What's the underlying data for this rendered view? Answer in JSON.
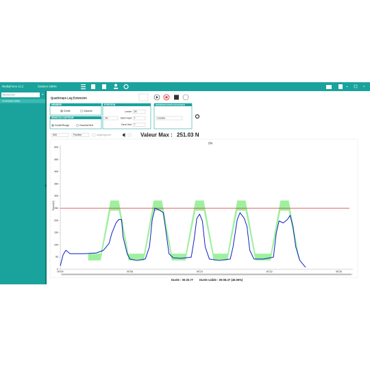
{
  "app": {
    "title": "MediqForce v2.2",
    "session": "Session Admin"
  },
  "sidebar": {
    "search_placeholder": "Rechercher",
    "items": [
      "Connexion (Idle)"
    ]
  },
  "exercise_title": "Quadriceps Leg Extension",
  "panels": {
    "membre": {
      "title": "MEMBRE",
      "options": [
        "Droite",
        "Gauche"
      ]
    },
    "sens": {
      "title": "SENS DU CAPTEUR",
      "options": [
        "Droite/Rouge",
        "Gauche/Vert"
      ]
    },
    "position": {
      "title": "POSITION",
      "levier_label": "Levier",
      "levier": "25",
      "angle": "90",
      "dent_haut_label": "Dent Haut",
      "dent_haut": "7",
      "dent_vert_label": "Dent Vert",
      "dent_vert": "7"
    },
    "representation": {
      "title": "REPRÉSENTATION GRAPHIQUE",
      "value": "Courbe"
    }
  },
  "toolbar": {
    "filter": "500",
    "mode": "Fenêtre",
    "check_label": "Angle/Ignorer",
    "max_label": "Valeur Max :",
    "max_value": "251.03 N"
  },
  "chart_data": {
    "type": "line",
    "title": "ON",
    "y_label": "Force(N)",
    "xlim": [
      0,
      21
    ],
    "xticks": [
      {
        "value": 0,
        "label": "00:00"
      },
      {
        "value": 5,
        "label": "00:05"
      },
      {
        "value": 10,
        "label": "00:10"
      },
      {
        "value": 15,
        "label": "00:15"
      },
      {
        "value": 20,
        "label": "00:20"
      }
    ],
    "ylim": [
      0,
      500
    ],
    "yticks": [
      0,
      50,
      100,
      150,
      200,
      250,
      300,
      350,
      400,
      450,
      500
    ],
    "threshold": {
      "value": 250,
      "color": "#cc2a2a"
    },
    "band": {
      "color": "#9ef09e",
      "x": [
        2.0,
        2.9,
        3.6,
        4.2,
        4.9,
        6.0,
        6.7,
        7.3,
        8.0,
        9.0,
        9.7,
        10.3,
        11.0,
        12.0,
        12.7,
        13.3,
        14.0,
        15.1,
        15.8,
        16.4,
        17.1
      ],
      "upper": [
        64,
        64,
        282,
        282,
        64,
        64,
        282,
        282,
        64,
        64,
        282,
        282,
        64,
        64,
        282,
        282,
        64,
        64,
        282,
        282,
        64
      ],
      "lower": [
        36,
        36,
        240,
        240,
        36,
        36,
        240,
        240,
        36,
        36,
        240,
        240,
        36,
        36,
        240,
        240,
        36,
        36,
        240,
        240,
        36
      ]
    },
    "series": [
      {
        "color": "#0b1fc4",
        "x": [
          0.0,
          0.2,
          0.4,
          0.7,
          1.1,
          1.8,
          2.6,
          3.1,
          3.5,
          3.7,
          4.0,
          4.2,
          4.4,
          4.5,
          4.8,
          5.0,
          5.5,
          6.1,
          6.4,
          6.6,
          6.8,
          7.1,
          7.4,
          7.6,
          7.8,
          8.1,
          8.7,
          9.4,
          9.6,
          9.8,
          10.0,
          10.2,
          10.4,
          10.7,
          11.4,
          12.2,
          12.4,
          12.7,
          12.9,
          13.2,
          13.4,
          13.6,
          13.9,
          14.6,
          15.3,
          15.5,
          15.7,
          16.0,
          16.3,
          16.5,
          16.7,
          16.9,
          17.2,
          17.4,
          17.6
        ],
        "values": [
          14,
          59,
          78,
          64,
          64,
          64,
          67,
          78,
          106,
          148,
          190,
          204,
          204,
          134,
          64,
          42,
          36,
          42,
          92,
          204,
          251,
          243,
          232,
          148,
          64,
          47,
          45,
          50,
          120,
          209,
          226,
          198,
          92,
          42,
          36,
          42,
          92,
          204,
          232,
          209,
          176,
          78,
          42,
          42,
          50,
          148,
          198,
          190,
          204,
          221,
          176,
          92,
          36,
          22,
          8
        ]
      }
    ]
  },
  "footer": {
    "duree": "Durée : 00:20.77",
    "duree_valide": "Durée valide : 00:08.37 (40.05%)"
  }
}
